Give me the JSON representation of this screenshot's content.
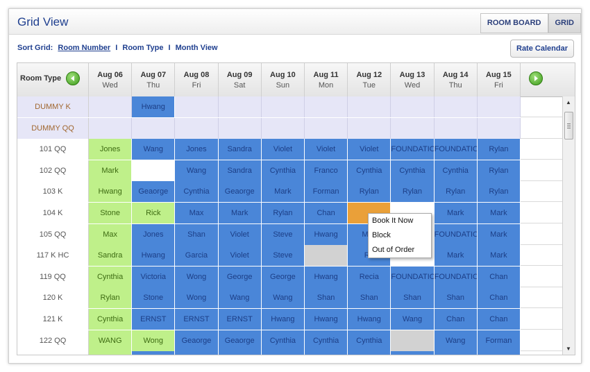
{
  "header": {
    "title": "Grid View",
    "tabs": [
      "ROOM BOARD",
      "GRID"
    ]
  },
  "sort": {
    "prefix": "Sort Grid:",
    "options": [
      "Room Number",
      "Room Type",
      "Month View"
    ],
    "separator": "I"
  },
  "rate_calendar": "Rate Calendar",
  "grid_header": {
    "room_type_label": "Room Type",
    "days": [
      {
        "date": "Aug 06",
        "dow": "Wed"
      },
      {
        "date": "Aug 07",
        "dow": "Thu"
      },
      {
        "date": "Aug 08",
        "dow": "Fri"
      },
      {
        "date": "Aug 09",
        "dow": "Sat"
      },
      {
        "date": "Aug 10",
        "dow": "Sun"
      },
      {
        "date": "Aug 11",
        "dow": "Mon"
      },
      {
        "date": "Aug 12",
        "dow": "Tue"
      },
      {
        "date": "Aug 13",
        "dow": "Wed"
      },
      {
        "date": "Aug 14",
        "dow": "Thu"
      },
      {
        "date": "Aug 15",
        "dow": "Fri"
      }
    ]
  },
  "colors": {
    "blue": "#4a86d8",
    "green": "#bff08a",
    "orange": "#eaa039",
    "gray": "#d2d2d2",
    "lavender": "#e6e6f7"
  },
  "rows": [
    {
      "room": "DUMMY K",
      "dummy": true,
      "cells": [
        [
          "",
          ""
        ],
        [
          "Hwang",
          "b"
        ],
        [
          "",
          ""
        ],
        [
          "",
          ""
        ],
        [
          "",
          ""
        ],
        [
          "",
          ""
        ],
        [
          "",
          ""
        ],
        [
          "",
          ""
        ],
        [
          "",
          ""
        ],
        [
          "",
          ""
        ]
      ]
    },
    {
      "room": "DUMMY QQ",
      "dummy": true,
      "cells": [
        [
          "",
          ""
        ],
        [
          "",
          ""
        ],
        [
          "",
          ""
        ],
        [
          "",
          ""
        ],
        [
          "",
          ""
        ],
        [
          "",
          ""
        ],
        [
          "",
          ""
        ],
        [
          "",
          ""
        ],
        [
          "",
          ""
        ],
        [
          "",
          ""
        ]
      ]
    },
    {
      "room": "101 QQ",
      "cells": [
        [
          "Jones",
          "g"
        ],
        [
          "Wang",
          "b"
        ],
        [
          "Jones",
          "b"
        ],
        [
          "Sandra",
          "b"
        ],
        [
          "Violet",
          "b"
        ],
        [
          "Violet",
          "b"
        ],
        [
          "Violet",
          "b"
        ],
        [
          "FOUNDATION",
          "b"
        ],
        [
          "FOUNDATION",
          "b"
        ],
        [
          "Rylan",
          "b"
        ]
      ]
    },
    {
      "room": "102 QQ",
      "cells": [
        [
          "Mark",
          "g"
        ],
        [
          "",
          "w"
        ],
        [
          "Wang",
          "b"
        ],
        [
          "Sandra",
          "b"
        ],
        [
          "Cynthia",
          "b"
        ],
        [
          "Franco",
          "b"
        ],
        [
          "Cynthia",
          "b"
        ],
        [
          "Cynthia",
          "b"
        ],
        [
          "Cynthia",
          "b"
        ],
        [
          "Rylan",
          "b"
        ]
      ]
    },
    {
      "room": "103 K",
      "cells": [
        [
          "Hwang",
          "g"
        ],
        [
          "Geaorge",
          "b"
        ],
        [
          "Cynthia",
          "b"
        ],
        [
          "Geaorge",
          "b"
        ],
        [
          "Mark",
          "b"
        ],
        [
          "Forman",
          "b"
        ],
        [
          "Rylan",
          "b"
        ],
        [
          "Rylan",
          "b"
        ],
        [
          "Rylan",
          "b"
        ],
        [
          "Rylan",
          "b"
        ]
      ]
    },
    {
      "room": "104 K",
      "cells": [
        [
          "Stone",
          "g"
        ],
        [
          "Rick",
          "g"
        ],
        [
          "Max",
          "b"
        ],
        [
          "Mark",
          "b"
        ],
        [
          "Rylan",
          "b"
        ],
        [
          "Chan",
          "b"
        ],
        [
          "",
          "o"
        ],
        [
          "",
          "w"
        ],
        [
          "Mark",
          "b"
        ],
        [
          "Mark",
          "b"
        ]
      ]
    },
    {
      "room": "105 QQ",
      "cells": [
        [
          "Max",
          "g"
        ],
        [
          "Jones",
          "b"
        ],
        [
          "Shan",
          "b"
        ],
        [
          "Violet",
          "b"
        ],
        [
          "Steve",
          "b"
        ],
        [
          "Hwang",
          "b"
        ],
        [
          "Mac",
          "b"
        ],
        [
          "",
          "w"
        ],
        [
          "FOUNDATION",
          "b"
        ],
        [
          "Mark",
          "b"
        ]
      ]
    },
    {
      "room": "117 K HC",
      "cells": [
        [
          "Sandra",
          "g"
        ],
        [
          "Hwang",
          "b"
        ],
        [
          "Garcia",
          "b"
        ],
        [
          "Violet",
          "b"
        ],
        [
          "Steve",
          "b"
        ],
        [
          "",
          "gr"
        ],
        [
          "Re",
          "b"
        ],
        [
          "",
          "w"
        ],
        [
          "Mark",
          "b"
        ],
        [
          "Mark",
          "b"
        ]
      ]
    },
    {
      "room": "119 QQ",
      "cells": [
        [
          "Cynthia",
          "g"
        ],
        [
          "Victoria",
          "b"
        ],
        [
          "Wong",
          "b"
        ],
        [
          "George",
          "b"
        ],
        [
          "George",
          "b"
        ],
        [
          "Hwang",
          "b"
        ],
        [
          "Recia",
          "b"
        ],
        [
          "FOUNDATION",
          "b"
        ],
        [
          "FOUNDATION",
          "b"
        ],
        [
          "Chan",
          "b"
        ]
      ]
    },
    {
      "room": "120 K",
      "cells": [
        [
          "Rylan",
          "g"
        ],
        [
          "Stone",
          "b"
        ],
        [
          "Wong",
          "b"
        ],
        [
          "Wang",
          "b"
        ],
        [
          "Wang",
          "b"
        ],
        [
          "Shan",
          "b"
        ],
        [
          "Shan",
          "b"
        ],
        [
          "Shan",
          "b"
        ],
        [
          "Shan",
          "b"
        ],
        [
          "Chan",
          "b"
        ]
      ]
    },
    {
      "room": "121 K",
      "cells": [
        [
          "Cynthia",
          "g"
        ],
        [
          "ERNST",
          "b"
        ],
        [
          "ERNST",
          "b"
        ],
        [
          "ERNST",
          "b"
        ],
        [
          "Hwang",
          "b"
        ],
        [
          "Hwang",
          "b"
        ],
        [
          "Hwang",
          "b"
        ],
        [
          "Wang",
          "b"
        ],
        [
          "Chan",
          "b"
        ],
        [
          "Chan",
          "b"
        ]
      ]
    },
    {
      "room": "122 QQ",
      "cells": [
        [
          "WANG",
          "g"
        ],
        [
          "Wong",
          "g"
        ],
        [
          "Geaorge",
          "b"
        ],
        [
          "Geaorge",
          "b"
        ],
        [
          "Cynthia",
          "b"
        ],
        [
          "Cynthia",
          "b"
        ],
        [
          "Cynthia",
          "b"
        ],
        [
          "",
          "gr"
        ],
        [
          "Wang",
          "b"
        ],
        [
          "Forman",
          "b"
        ]
      ]
    },
    {
      "room": "",
      "cells": [
        [
          "",
          "g"
        ],
        [
          "",
          "b"
        ],
        [
          "",
          "b"
        ],
        [
          "",
          "b"
        ],
        [
          "",
          "b"
        ],
        [
          "",
          "b"
        ],
        [
          "",
          "b"
        ],
        [
          "",
          "b"
        ],
        [
          "",
          "b"
        ],
        [
          "",
          "b"
        ]
      ]
    }
  ],
  "context_menu": {
    "items": [
      "Book It Now",
      "Block",
      "Out of Order"
    ]
  }
}
